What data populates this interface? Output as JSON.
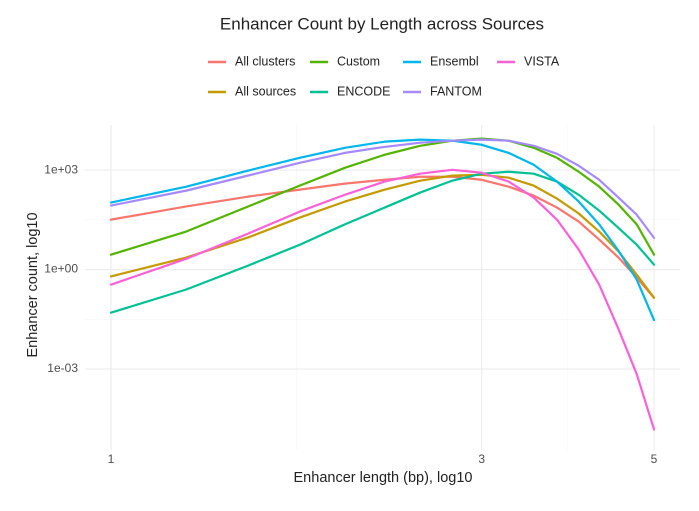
{
  "chart_data": {
    "type": "line",
    "title": "Enhancer Count by Length across Sources",
    "x_label": "Enhancer length (bp), log10",
    "y_label": "Enhancer count, log10",
    "x_log": true,
    "y_log": true,
    "grid": true,
    "legend_position": "top",
    "x": [
      1,
      1.25,
      1.5,
      1.75,
      2,
      2.25,
      2.5,
      2.75,
      3,
      3.25,
      3.5,
      3.75,
      4,
      4.25,
      4.5,
      4.75,
      5
    ],
    "xlim": [
      0.926,
      5.4
    ],
    "xticks": [
      1,
      3,
      5
    ],
    "ylim": [
      3.6e-06,
      22900
    ],
    "yticks": [
      {
        "value": 0.001,
        "label": "1e-03"
      },
      {
        "value": 1,
        "label": "1e+00"
      },
      {
        "value": 1000,
        "label": "1e+03"
      }
    ],
    "series": [
      {
        "name": "All clusters",
        "color": "#F8766D",
        "values": [
          32,
          80,
          158,
          257,
          390,
          510,
          630,
          630,
          510,
          316,
          170,
          74,
          28,
          8,
          2.3,
          0.57,
          0.14
        ]
      },
      {
        "name": "All sources",
        "color": "#C49A00",
        "values": [
          0.62,
          2.3,
          9.2,
          37,
          112,
          257,
          480,
          680,
          720,
          590,
          340,
          138,
          49,
          14,
          3.5,
          0.7,
          0.14
        ]
      },
      {
        "name": "Custom",
        "color": "#53B400",
        "values": [
          2.8,
          14,
          79,
          340,
          1170,
          2900,
          5400,
          7700,
          8900,
          7700,
          4700,
          2350,
          890,
          316,
          91,
          23,
          2.8
        ]
      },
      {
        "name": "ENCODE",
        "color": "#00C094",
        "values": [
          0.05,
          0.25,
          1.3,
          5.6,
          23,
          74,
          210,
          480,
          780,
          890,
          780,
          450,
          180,
          60,
          18,
          5.6,
          1.4
        ]
      },
      {
        "name": "Ensembl",
        "color": "#00B6EB",
        "values": [
          105,
          316,
          960,
          2350,
          4700,
          7200,
          8300,
          7700,
          5800,
          3300,
          1450,
          450,
          112,
          23,
          3.7,
          0.5,
          0.03
        ]
      },
      {
        "name": "FANTOM",
        "color": "#A58AFF",
        "values": [
          85,
          240,
          680,
          1660,
          3300,
          5000,
          6700,
          7700,
          8300,
          7700,
          5400,
          3100,
          1350,
          510,
          148,
          45,
          9
        ]
      },
      {
        "name": "VISTA",
        "color": "#FB61D7",
        "values": [
          0.35,
          2.1,
          12,
          56,
          180,
          450,
          780,
          1020,
          830,
          450,
          148,
          32,
          4,
          0.35,
          0.016,
          0.0007,
          1.5e-05
        ]
      }
    ]
  }
}
